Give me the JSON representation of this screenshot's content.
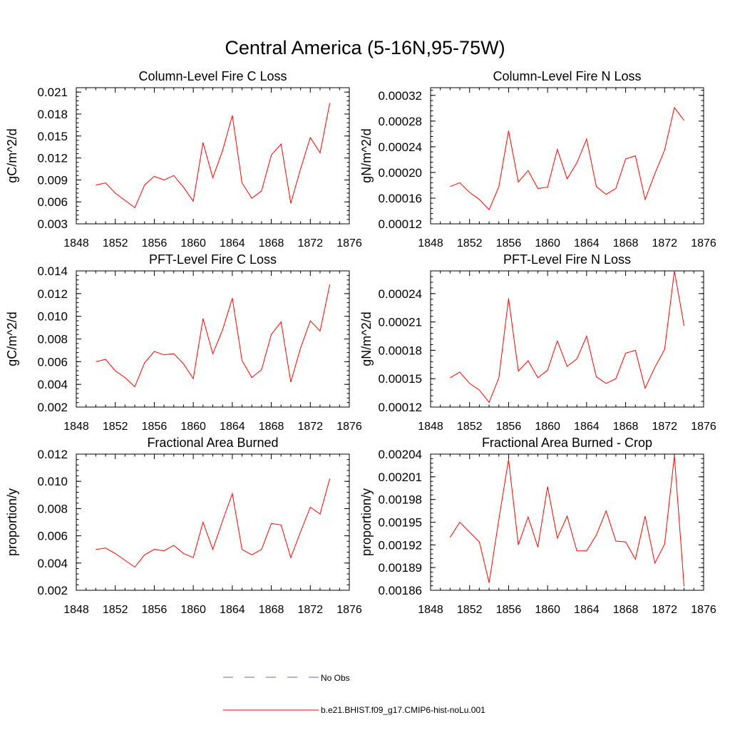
{
  "figure": {
    "title": "Central America (5-16N,95-75W)",
    "line_color": "#ff0000",
    "obs_color": "#6a6ab0"
  },
  "legend": {
    "obs_label": "No Obs",
    "model_label": "b.e21.BHIST.f09_g17.CMIP6-hist-noLu.001"
  },
  "chart_data": [
    {
      "type": "line",
      "title": "Column-Level Fire C Loss",
      "ylabel": "gC/m^2/d",
      "xlim": [
        1848,
        1876
      ],
      "ylim": [
        0.003,
        0.0216
      ],
      "xticks": [
        1848,
        1852,
        1856,
        1860,
        1864,
        1868,
        1872,
        1876
      ],
      "yticks": [
        "0.003",
        "0.006",
        "0.009",
        "0.012",
        "0.015",
        "0.018",
        "0.021"
      ],
      "series": [
        {
          "name": "b.e21.BHIST.f09_g17.CMIP6-hist-noLu.001",
          "x": [
            1850,
            1851,
            1852,
            1853,
            1854,
            1855,
            1856,
            1857,
            1858,
            1859,
            1860,
            1861,
            1862,
            1863,
            1864,
            1865,
            1866,
            1867,
            1868,
            1869,
            1870,
            1871,
            1872,
            1873,
            1874
          ],
          "y": [
            0.0083,
            0.0086,
            0.0072,
            0.0062,
            0.0052,
            0.0083,
            0.0095,
            0.009,
            0.0096,
            0.008,
            0.0061,
            0.0141,
            0.0093,
            0.013,
            0.0178,
            0.0086,
            0.0065,
            0.0075,
            0.0124,
            0.0139,
            0.0058,
            0.0105,
            0.0148,
            0.0127,
            0.0195
          ]
        }
      ]
    },
    {
      "type": "line",
      "title": "Column-Level Fire N Loss",
      "ylabel": "gN/m^2/d",
      "xlim": [
        1848,
        1876
      ],
      "ylim": [
        0.00012,
        0.000332
      ],
      "xticks": [
        1848,
        1852,
        1856,
        1860,
        1864,
        1868,
        1872,
        1876
      ],
      "yticks": [
        "0.00012",
        "0.00016",
        "0.00020",
        "0.00024",
        "0.00028",
        "0.00032"
      ],
      "series": [
        {
          "name": "b.e21.BHIST.f09_g17.CMIP6-hist-noLu.001",
          "x": [
            1850,
            1851,
            1852,
            1853,
            1854,
            1855,
            1856,
            1857,
            1858,
            1859,
            1860,
            1861,
            1862,
            1863,
            1864,
            1865,
            1866,
            1867,
            1868,
            1869,
            1870,
            1871,
            1872,
            1873,
            1874
          ],
          "y": [
            0.000178,
            0.000184,
            0.000169,
            0.000158,
            0.000142,
            0.000178,
            0.000265,
            0.000185,
            0.000203,
            0.000175,
            0.000177,
            0.000236,
            0.00019,
            0.000215,
            0.000252,
            0.000178,
            0.000166,
            0.000175,
            0.000221,
            0.000226,
            0.000158,
            0.000198,
            0.000235,
            0.000301,
            0.000281
          ]
        }
      ]
    },
    {
      "type": "line",
      "title": "PFT-Level Fire C Loss",
      "ylabel": "gC/m^2/d",
      "xlim": [
        1848,
        1876
      ],
      "ylim": [
        0.002,
        0.014
      ],
      "xticks": [
        1848,
        1852,
        1856,
        1860,
        1864,
        1868,
        1872,
        1876
      ],
      "yticks": [
        "0.002",
        "0.004",
        "0.006",
        "0.008",
        "0.010",
        "0.012",
        "0.014"
      ],
      "series": [
        {
          "name": "b.e21.BHIST.f09_g17.CMIP6-hist-noLu.001",
          "x": [
            1850,
            1851,
            1852,
            1853,
            1854,
            1855,
            1856,
            1857,
            1858,
            1859,
            1860,
            1861,
            1862,
            1863,
            1864,
            1865,
            1866,
            1867,
            1868,
            1869,
            1870,
            1871,
            1872,
            1873,
            1874
          ],
          "y": [
            0.006,
            0.0062,
            0.0052,
            0.0046,
            0.0038,
            0.0059,
            0.0069,
            0.0066,
            0.0067,
            0.0058,
            0.0045,
            0.0098,
            0.0067,
            0.0088,
            0.0116,
            0.0061,
            0.0046,
            0.0053,
            0.0084,
            0.0095,
            0.0042,
            0.0072,
            0.0096,
            0.0087,
            0.0128
          ]
        }
      ]
    },
    {
      "type": "line",
      "title": "PFT-Level Fire N Loss",
      "ylabel": "gN/m^2/d",
      "xlim": [
        1848,
        1876
      ],
      "ylim": [
        0.00012,
        0.000264
      ],
      "xticks": [
        1848,
        1852,
        1856,
        1860,
        1864,
        1868,
        1872,
        1876
      ],
      "yticks": [
        "0.00012",
        "0.00015",
        "0.00018",
        "0.00021",
        "0.00024"
      ],
      "series": [
        {
          "name": "b.e21.BHIST.f09_g17.CMIP6-hist-noLu.001",
          "x": [
            1850,
            1851,
            1852,
            1853,
            1854,
            1855,
            1856,
            1857,
            1858,
            1859,
            1860,
            1861,
            1862,
            1863,
            1864,
            1865,
            1866,
            1867,
            1868,
            1869,
            1870,
            1871,
            1872,
            1873,
            1874
          ],
          "y": [
            0.000151,
            0.000157,
            0.000145,
            0.000138,
            0.000125,
            0.000151,
            0.000235,
            0.000158,
            0.000169,
            0.000151,
            0.000159,
            0.00019,
            0.000163,
            0.000171,
            0.000195,
            0.000152,
            0.000145,
            0.00015,
            0.000177,
            0.00018,
            0.00014,
            0.000162,
            0.000181,
            0.000264,
            0.000206
          ]
        }
      ]
    },
    {
      "type": "line",
      "title": "Fractional Area Burned",
      "ylabel": "proportion/y",
      "xlim": [
        1848,
        1876
      ],
      "ylim": [
        0.002,
        0.012
      ],
      "xticks": [
        1848,
        1852,
        1856,
        1860,
        1864,
        1868,
        1872,
        1876
      ],
      "yticks": [
        "0.002",
        "0.004",
        "0.006",
        "0.008",
        "0.010",
        "0.012"
      ],
      "series": [
        {
          "name": "b.e21.BHIST.f09_g17.CMIP6-hist-noLu.001",
          "x": [
            1850,
            1851,
            1852,
            1853,
            1854,
            1855,
            1856,
            1857,
            1858,
            1859,
            1860,
            1861,
            1862,
            1863,
            1864,
            1865,
            1866,
            1867,
            1868,
            1869,
            1870,
            1871,
            1872,
            1873,
            1874
          ],
          "y": [
            0.005,
            0.0051,
            0.0047,
            0.0042,
            0.0037,
            0.0046,
            0.005,
            0.0049,
            0.0053,
            0.0047,
            0.0044,
            0.007,
            0.005,
            0.0071,
            0.0091,
            0.005,
            0.0046,
            0.005,
            0.0069,
            0.0068,
            0.0044,
            0.0063,
            0.0081,
            0.0076,
            0.0102
          ]
        }
      ]
    },
    {
      "type": "line",
      "title": "Fractional Area Burned - Crop",
      "ylabel": "proportion/y",
      "xlim": [
        1848,
        1876
      ],
      "ylim": [
        0.00186,
        0.00204
      ],
      "xticks": [
        1848,
        1852,
        1856,
        1860,
        1864,
        1868,
        1872,
        1876
      ],
      "yticks": [
        "0.00186",
        "0.00189",
        "0.00192",
        "0.00195",
        "0.00198",
        "0.00201",
        "0.00204"
      ],
      "series": [
        {
          "name": "b.e21.BHIST.f09_g17.CMIP6-hist-noLu.001",
          "x": [
            1850,
            1851,
            1852,
            1853,
            1854,
            1855,
            1856,
            1857,
            1858,
            1859,
            1860,
            1861,
            1862,
            1863,
            1864,
            1865,
            1866,
            1867,
            1868,
            1869,
            1870,
            1871,
            1872,
            1873,
            1874
          ],
          "y": [
            0.00193,
            0.00195,
            0.001937,
            0.001924,
            0.00187,
            0.001954,
            0.002033,
            0.00192,
            0.001957,
            0.001917,
            0.001997,
            0.001929,
            0.001958,
            0.001912,
            0.001912,
            0.001933,
            0.001965,
            0.001925,
            0.001924,
            0.001901,
            0.001958,
            0.001896,
            0.001921,
            0.002038,
            0.001865
          ]
        }
      ]
    }
  ]
}
